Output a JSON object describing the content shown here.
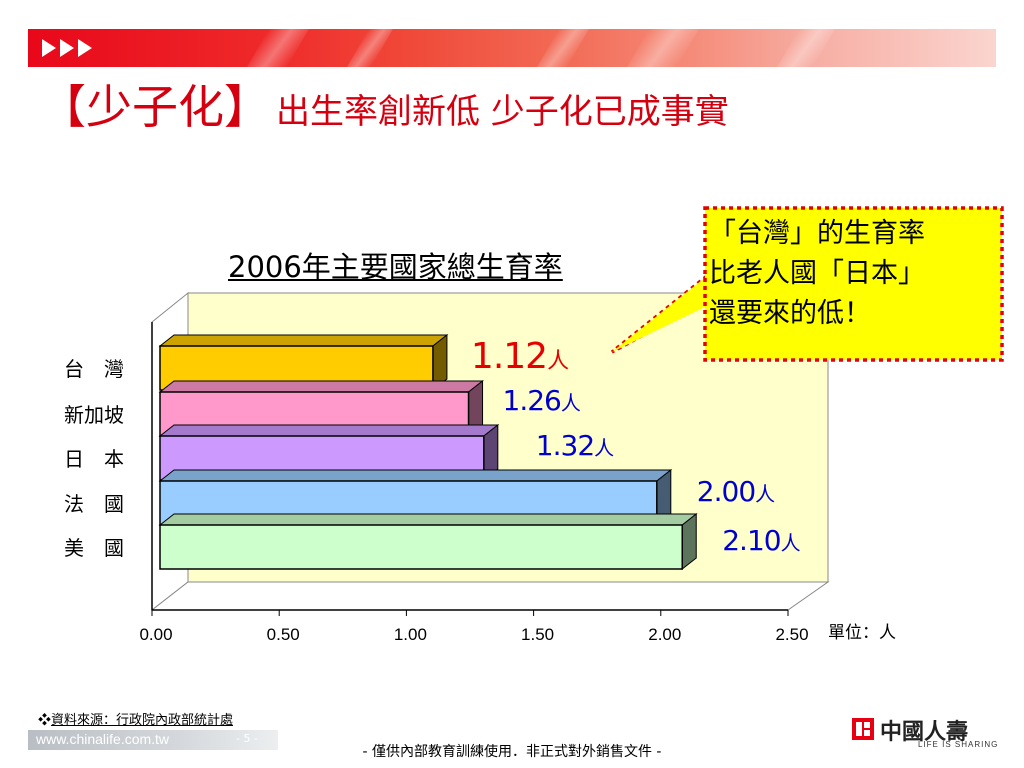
{
  "title": {
    "main": "【少子化】",
    "sub": "出生率創新低  少子化已成事實"
  },
  "chart_data": {
    "type": "bar",
    "orientation": "horizontal",
    "title": "2006年主要國家總生育率",
    "categories": [
      "台　灣",
      "新加坡",
      "日　本",
      "法　國",
      "美　國"
    ],
    "values": [
      1.12,
      1.26,
      1.32,
      2.0,
      2.1
    ],
    "data_labels": [
      {
        "num": "1.12",
        "unit": "人"
      },
      {
        "num": "1.26",
        "unit": "人"
      },
      {
        "num": "1.32",
        "unit": "人"
      },
      {
        "num": "2.00",
        "unit": "人"
      },
      {
        "num": "2.10",
        "unit": "人"
      }
    ],
    "colors": [
      "#ffcc00",
      "#ff99cc",
      "#cc99ff",
      "#99ccff",
      "#ccffcc"
    ],
    "highlight_color": "#e60000",
    "label_color": "#0000cc",
    "xlim": [
      0,
      2.5
    ],
    "xticks": [
      "0.00",
      "0.50",
      "1.00",
      "1.50",
      "2.00",
      "2.50"
    ],
    "unit_label": "單位：人",
    "wall_color": "#ffffcc",
    "grid": false,
    "style": "3d"
  },
  "callout": {
    "lines": [
      "「台灣」的生育率",
      "比老人國「日本」",
      "還要來的低！"
    ],
    "fill": "#ffff00",
    "border": "#e60000"
  },
  "source": {
    "bullet": "❖",
    "text": "資料來源：行政院內政部統計處"
  },
  "footer": {
    "url": "www.chinalife.com.tw",
    "page": "- 5 -",
    "disclaimer": "- 僅供內部教育訓練使用．非正式對外銷售文件 -"
  },
  "logo": {
    "name": "中國人壽",
    "tagline": "LIFE IS SHARING"
  }
}
